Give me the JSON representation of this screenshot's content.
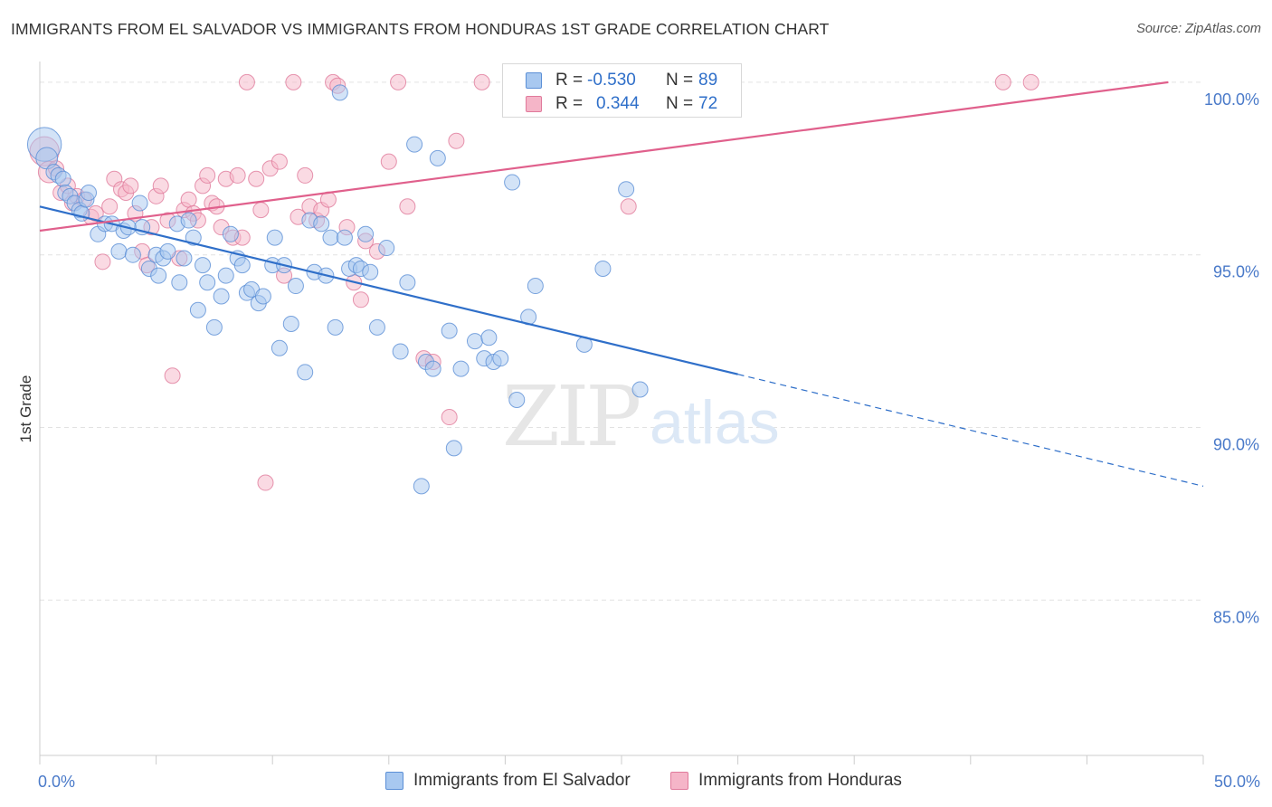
{
  "title": "IMMIGRANTS FROM EL SALVADOR VS IMMIGRANTS FROM HONDURAS 1ST GRADE CORRELATION CHART",
  "source": "Source: ZipAtlas.com",
  "watermark": {
    "zip": "ZIP",
    "atlas": "atlas"
  },
  "colors": {
    "blue_fill": "#a8c8f0",
    "blue_stroke": "#5b8fd6",
    "blue_line": "#2f6fc9",
    "pink_fill": "#f5b5c8",
    "pink_stroke": "#e07a9b",
    "pink_line": "#e0608c",
    "tick_text": "#4a7ac9",
    "grid": "#e2e2e2"
  },
  "stats": [
    {
      "r_label": "R =",
      "r_value": "-0.530",
      "n_label": "N =",
      "n_value": "89",
      "color": "#a8c8f0",
      "border": "#5b8fd6"
    },
    {
      "r_label": "R =",
      "r_value": "0.344",
      "n_label": "N =",
      "n_value": "72",
      "color": "#f5b5c8",
      "border": "#e07a9b"
    }
  ],
  "legend": [
    {
      "label": "Immigrants from El Salvador",
      "color": "#a8c8f0",
      "border": "#5b8fd6"
    },
    {
      "label": "Immigrants from Honduras",
      "color": "#f5b5c8",
      "border": "#e07a9b"
    }
  ],
  "chart_data": {
    "type": "scatter",
    "title": "IMMIGRANTS FROM EL SALVADOR VS IMMIGRANTS FROM HONDURAS 1ST GRADE CORRELATION CHART",
    "xlabel": "",
    "ylabel": "1st Grade",
    "xlim": [
      0,
      50
    ],
    "ylim": [
      80.5,
      100.6
    ],
    "x_tick_labels": [
      {
        "value": 0,
        "label": "0.0%"
      },
      {
        "value": 50,
        "label": "50.0%"
      }
    ],
    "y_tick_labels": [
      {
        "value": 100,
        "label": "100.0%"
      },
      {
        "value": 95,
        "label": "95.0%"
      },
      {
        "value": 90,
        "label": "90.0%"
      },
      {
        "value": 85,
        "label": "85.0%"
      }
    ],
    "y_gridlines": [
      100,
      95,
      90,
      85
    ],
    "legend_position": "bottom-center",
    "series": [
      {
        "name": "Immigrants from El Salvador",
        "color": "#a8c8f0",
        "points": [
          {
            "x": 0.2,
            "y": 98.2,
            "s": 2.2
          },
          {
            "x": 0.3,
            "y": 97.8,
            "s": 1.4
          },
          {
            "x": 0.6,
            "y": 97.4
          },
          {
            "x": 0.8,
            "y": 97.3
          },
          {
            "x": 1.0,
            "y": 97.2
          },
          {
            "x": 1.1,
            "y": 96.8
          },
          {
            "x": 1.3,
            "y": 96.7
          },
          {
            "x": 1.5,
            "y": 96.5
          },
          {
            "x": 1.7,
            "y": 96.3
          },
          {
            "x": 1.8,
            "y": 96.2
          },
          {
            "x": 2.0,
            "y": 96.6
          },
          {
            "x": 2.1,
            "y": 96.8
          },
          {
            "x": 2.5,
            "y": 95.6
          },
          {
            "x": 2.8,
            "y": 95.9
          },
          {
            "x": 3.1,
            "y": 95.9
          },
          {
            "x": 3.4,
            "y": 95.1
          },
          {
            "x": 3.6,
            "y": 95.7
          },
          {
            "x": 4.0,
            "y": 95.0
          },
          {
            "x": 4.3,
            "y": 96.5
          },
          {
            "x": 4.4,
            "y": 95.8
          },
          {
            "x": 4.7,
            "y": 94.6
          },
          {
            "x": 5.0,
            "y": 95.0
          },
          {
            "x": 5.1,
            "y": 94.4
          },
          {
            "x": 5.3,
            "y": 94.9
          },
          {
            "x": 5.5,
            "y": 95.1
          },
          {
            "x": 5.9,
            "y": 95.9
          },
          {
            "x": 6.0,
            "y": 94.2
          },
          {
            "x": 6.2,
            "y": 94.9
          },
          {
            "x": 6.6,
            "y": 95.5
          },
          {
            "x": 6.8,
            "y": 93.4
          },
          {
            "x": 7.0,
            "y": 94.7
          },
          {
            "x": 7.2,
            "y": 94.2
          },
          {
            "x": 7.5,
            "y": 92.9
          },
          {
            "x": 7.8,
            "y": 93.8
          },
          {
            "x": 8.0,
            "y": 94.4
          },
          {
            "x": 8.2,
            "y": 95.6
          },
          {
            "x": 8.5,
            "y": 94.9
          },
          {
            "x": 8.7,
            "y": 94.7
          },
          {
            "x": 8.9,
            "y": 93.9
          },
          {
            "x": 9.1,
            "y": 94.0
          },
          {
            "x": 9.4,
            "y": 93.6
          },
          {
            "x": 9.6,
            "y": 93.8
          },
          {
            "x": 10.0,
            "y": 94.7
          },
          {
            "x": 10.1,
            "y": 95.5
          },
          {
            "x": 10.3,
            "y": 92.3
          },
          {
            "x": 10.5,
            "y": 94.7
          },
          {
            "x": 10.8,
            "y": 93.0
          },
          {
            "x": 11.0,
            "y": 94.1
          },
          {
            "x": 11.4,
            "y": 91.6
          },
          {
            "x": 11.6,
            "y": 96.0
          },
          {
            "x": 11.8,
            "y": 94.5
          },
          {
            "x": 12.1,
            "y": 95.9
          },
          {
            "x": 12.3,
            "y": 94.4
          },
          {
            "x": 12.5,
            "y": 95.5
          },
          {
            "x": 12.7,
            "y": 92.9
          },
          {
            "x": 12.9,
            "y": 99.7
          },
          {
            "x": 13.1,
            "y": 95.5
          },
          {
            "x": 13.3,
            "y": 94.6
          },
          {
            "x": 13.6,
            "y": 94.7
          },
          {
            "x": 13.8,
            "y": 94.6
          },
          {
            "x": 14.0,
            "y": 95.6
          },
          {
            "x": 14.2,
            "y": 94.5
          },
          {
            "x": 14.5,
            "y": 92.9
          },
          {
            "x": 14.9,
            "y": 95.2
          },
          {
            "x": 15.5,
            "y": 92.2
          },
          {
            "x": 15.8,
            "y": 94.2
          },
          {
            "x": 16.1,
            "y": 98.2
          },
          {
            "x": 16.4,
            "y": 88.3
          },
          {
            "x": 16.6,
            "y": 91.9
          },
          {
            "x": 16.9,
            "y": 91.7
          },
          {
            "x": 17.1,
            "y": 97.8
          },
          {
            "x": 17.6,
            "y": 92.8
          },
          {
            "x": 17.8,
            "y": 89.4
          },
          {
            "x": 18.1,
            "y": 91.7
          },
          {
            "x": 18.7,
            "y": 92.5
          },
          {
            "x": 19.1,
            "y": 92.0
          },
          {
            "x": 19.3,
            "y": 92.6
          },
          {
            "x": 19.5,
            "y": 91.9
          },
          {
            "x": 19.8,
            "y": 92.0
          },
          {
            "x": 20.3,
            "y": 97.1
          },
          {
            "x": 20.5,
            "y": 90.8
          },
          {
            "x": 21.0,
            "y": 93.2
          },
          {
            "x": 21.3,
            "y": 94.1
          },
          {
            "x": 23.4,
            "y": 92.4
          },
          {
            "x": 24.2,
            "y": 94.6
          },
          {
            "x": 25.2,
            "y": 96.9
          },
          {
            "x": 25.8,
            "y": 91.1
          },
          {
            "x": 6.4,
            "y": 96.0
          },
          {
            "x": 3.8,
            "y": 95.8
          }
        ]
      },
      {
        "name": "Immigrants from Honduras",
        "color": "#f5b5c8",
        "points": [
          {
            "x": 0.2,
            "y": 98.0,
            "s": 1.9
          },
          {
            "x": 0.4,
            "y": 97.4,
            "s": 1.4
          },
          {
            "x": 0.7,
            "y": 97.5
          },
          {
            "x": 0.9,
            "y": 96.8
          },
          {
            "x": 1.2,
            "y": 97.0
          },
          {
            "x": 1.4,
            "y": 96.5
          },
          {
            "x": 1.6,
            "y": 96.7
          },
          {
            "x": 1.9,
            "y": 96.6
          },
          {
            "x": 2.2,
            "y": 96.1
          },
          {
            "x": 2.4,
            "y": 96.2
          },
          {
            "x": 2.7,
            "y": 94.8
          },
          {
            "x": 3.0,
            "y": 96.4
          },
          {
            "x": 3.2,
            "y": 97.2
          },
          {
            "x": 3.5,
            "y": 96.9
          },
          {
            "x": 3.7,
            "y": 96.8
          },
          {
            "x": 3.9,
            "y": 97.0
          },
          {
            "x": 4.1,
            "y": 96.2
          },
          {
            "x": 4.4,
            "y": 95.1
          },
          {
            "x": 4.6,
            "y": 94.7
          },
          {
            "x": 4.8,
            "y": 95.8
          },
          {
            "x": 5.0,
            "y": 96.7
          },
          {
            "x": 5.2,
            "y": 97.0
          },
          {
            "x": 5.5,
            "y": 96.0
          },
          {
            "x": 5.7,
            "y": 91.5
          },
          {
            "x": 6.0,
            "y": 94.9
          },
          {
            "x": 6.2,
            "y": 96.3
          },
          {
            "x": 6.4,
            "y": 96.6
          },
          {
            "x": 6.6,
            "y": 96.2
          },
          {
            "x": 6.8,
            "y": 96.0
          },
          {
            "x": 7.0,
            "y": 97.0
          },
          {
            "x": 7.2,
            "y": 97.3
          },
          {
            "x": 7.4,
            "y": 96.5
          },
          {
            "x": 7.6,
            "y": 96.4
          },
          {
            "x": 7.8,
            "y": 95.8
          },
          {
            "x": 8.0,
            "y": 97.2
          },
          {
            "x": 8.3,
            "y": 95.5
          },
          {
            "x": 8.5,
            "y": 97.3
          },
          {
            "x": 8.7,
            "y": 95.5
          },
          {
            "x": 8.9,
            "y": 100.0
          },
          {
            "x": 9.3,
            "y": 97.2
          },
          {
            "x": 9.5,
            "y": 96.3
          },
          {
            "x": 9.7,
            "y": 88.4
          },
          {
            "x": 9.9,
            "y": 97.5
          },
          {
            "x": 10.3,
            "y": 97.7
          },
          {
            "x": 10.5,
            "y": 94.4
          },
          {
            "x": 10.9,
            "y": 100.0
          },
          {
            "x": 11.1,
            "y": 96.1
          },
          {
            "x": 11.4,
            "y": 97.3
          },
          {
            "x": 11.6,
            "y": 96.4
          },
          {
            "x": 11.9,
            "y": 96.0
          },
          {
            "x": 12.1,
            "y": 96.3
          },
          {
            "x": 12.4,
            "y": 96.6
          },
          {
            "x": 12.6,
            "y": 100.0
          },
          {
            "x": 12.8,
            "y": 99.9
          },
          {
            "x": 13.2,
            "y": 95.8
          },
          {
            "x": 13.5,
            "y": 94.2
          },
          {
            "x": 13.8,
            "y": 93.7
          },
          {
            "x": 14.0,
            "y": 95.4
          },
          {
            "x": 14.5,
            "y": 95.1
          },
          {
            "x": 15.0,
            "y": 97.7
          },
          {
            "x": 15.4,
            "y": 100.0
          },
          {
            "x": 15.8,
            "y": 96.4
          },
          {
            "x": 16.5,
            "y": 92.0
          },
          {
            "x": 16.9,
            "y": 91.9
          },
          {
            "x": 17.6,
            "y": 90.3
          },
          {
            "x": 17.9,
            "y": 98.3
          },
          {
            "x": 19.0,
            "y": 100.0
          },
          {
            "x": 21.9,
            "y": 100.0
          },
          {
            "x": 25.3,
            "y": 96.4
          },
          {
            "x": 28.3,
            "y": 100.0
          },
          {
            "x": 41.4,
            "y": 100.0
          },
          {
            "x": 42.6,
            "y": 100.0
          }
        ]
      }
    ],
    "trendlines": [
      {
        "series": "Immigrants from El Salvador",
        "x_start": 0,
        "y_start": 96.4,
        "x_solid_end": 30.0,
        "x_dash_end": 50,
        "y_at_x_dash_end": 88.3
      },
      {
        "series": "Immigrants from Honduras",
        "x_start": 0,
        "y_start": 95.7,
        "x_end": 48.5,
        "y_end": 100.0
      }
    ]
  }
}
